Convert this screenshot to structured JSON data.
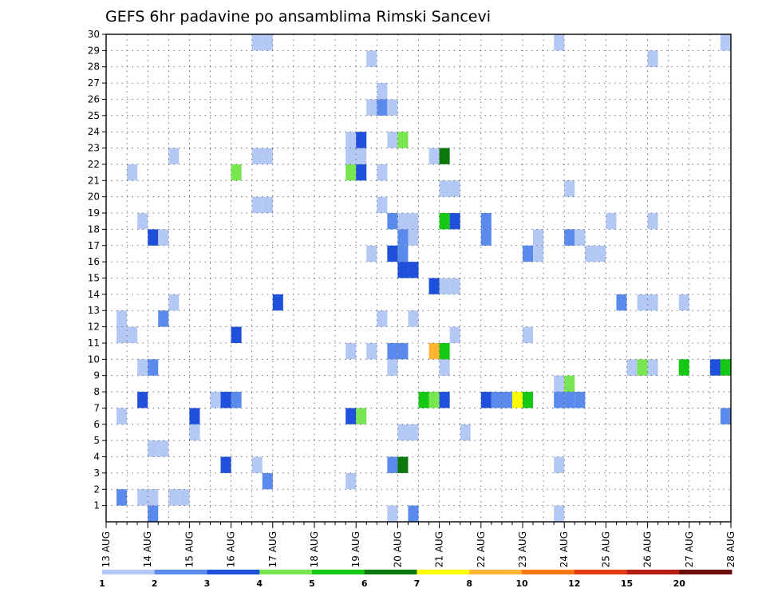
{
  "chart_data": {
    "type": "heatmap",
    "title": "GEFS 6hr padavine po ansamblima Rimski Sancevi",
    "xlabel": "",
    "ylabel": "",
    "x_tick_labels": [
      "13 AUG",
      "14 AUG",
      "15 AUG",
      "16 AUG",
      "17 AUG",
      "18 AUG",
      "19 AUG",
      "20 AUG",
      "21 AUG",
      "22 AUG",
      "23 AUG",
      "24 AUG",
      "25 AUG",
      "26 AUG",
      "27 AUG",
      "28 AUG"
    ],
    "y_tick_labels": [
      "1",
      "2",
      "3",
      "4",
      "5",
      "6",
      "7",
      "8",
      "9",
      "10",
      "11",
      "12",
      "13",
      "14",
      "15",
      "16",
      "17",
      "18",
      "19",
      "20",
      "21",
      "22",
      "23",
      "24",
      "25",
      "26",
      "27",
      "28",
      "29",
      "30"
    ],
    "time_range_days": [
      0,
      15
    ],
    "member_range": [
      0,
      30
    ],
    "time_step_days": 0.25,
    "grid": true,
    "colorbar": {
      "tick_labels": [
        "1",
        "2",
        "3",
        "4",
        "5",
        "6",
        "7",
        "8",
        "10",
        "12",
        "15",
        "20"
      ],
      "colors": [
        "#b4c8f5",
        "#5a8aec",
        "#1e50dc",
        "#78e650",
        "#14c814",
        "#0a780a",
        "#ffff00",
        "#ffb432",
        "#ff7814",
        "#e63c14",
        "#b41e14",
        "#6e0a0a"
      ],
      "placement": "bottom"
    },
    "cells_note_format": "[day_offset_from_13_AUG_00Z, member, precip_mm]",
    "cells": [
      [
        0.25,
        1,
        2.5
      ],
      [
        0.75,
        1,
        1.5
      ],
      [
        1.0,
        1,
        1.5
      ],
      [
        1.5,
        1,
        1.5
      ],
      [
        1.75,
        1,
        1.5
      ],
      [
        1.0,
        0,
        2.5
      ],
      [
        6.75,
        0,
        1.5
      ],
      [
        7.25,
        0,
        2.5
      ],
      [
        10.75,
        0,
        1.5
      ],
      [
        3.75,
        2,
        2.5
      ],
      [
        5.75,
        2,
        1.5
      ],
      [
        2.75,
        3,
        3.5
      ],
      [
        3.5,
        3,
        1.5
      ],
      [
        6.75,
        3,
        2.5
      ],
      [
        7.0,
        3,
        6.5
      ],
      [
        10.75,
        3,
        1.5
      ],
      [
        1.0,
        4,
        1.5
      ],
      [
        1.25,
        4,
        1.5
      ],
      [
        2.0,
        5,
        1.5
      ],
      [
        7.0,
        5,
        1.5
      ],
      [
        7.25,
        5,
        1.5
      ],
      [
        8.5,
        5,
        1.5
      ],
      [
        0.25,
        6,
        1.5
      ],
      [
        2.0,
        6,
        3.5
      ],
      [
        5.75,
        6,
        3.5
      ],
      [
        6.0,
        6,
        4.5
      ],
      [
        14.75,
        6,
        2.5
      ],
      [
        0.75,
        7,
        3.5
      ],
      [
        2.5,
        7,
        1.5
      ],
      [
        2.75,
        7,
        3.5
      ],
      [
        3.0,
        7,
        2.5
      ],
      [
        7.5,
        7,
        5.5
      ],
      [
        7.75,
        7,
        4.5
      ],
      [
        8.0,
        7,
        3.5
      ],
      [
        9.0,
        7,
        3.5
      ],
      [
        9.25,
        7,
        2.5
      ],
      [
        9.5,
        7,
        2.5
      ],
      [
        9.75,
        7,
        7.5
      ],
      [
        10.0,
        7,
        5.5
      ],
      [
        10.75,
        7,
        2.5
      ],
      [
        11.0,
        7,
        2.5
      ],
      [
        11.25,
        7,
        2.5
      ],
      [
        10.75,
        8,
        1.5
      ],
      [
        11.0,
        8,
        4.5
      ],
      [
        0.75,
        9,
        1.5
      ],
      [
        1.0,
        9,
        2.5
      ],
      [
        6.75,
        9,
        1.5
      ],
      [
        8.0,
        9,
        1.5
      ],
      [
        12.5,
        9,
        1.5
      ],
      [
        12.75,
        9,
        4.5
      ],
      [
        13.0,
        9,
        1.5
      ],
      [
        13.75,
        9,
        5.5
      ],
      [
        14.5,
        9,
        3.5
      ],
      [
        14.75,
        9,
        5.5
      ],
      [
        5.75,
        10,
        1.5
      ],
      [
        6.25,
        10,
        1.5
      ],
      [
        6.75,
        10,
        2.5
      ],
      [
        7.0,
        10,
        2.5
      ],
      [
        7.75,
        10,
        8.5
      ],
      [
        8.0,
        10,
        5.5
      ],
      [
        0.25,
        11,
        1.5
      ],
      [
        0.5,
        11,
        1.5
      ],
      [
        3.0,
        11,
        3.5
      ],
      [
        8.25,
        11,
        1.5
      ],
      [
        10.0,
        11,
        1.5
      ],
      [
        0.25,
        12,
        1.5
      ],
      [
        1.25,
        12,
        2.5
      ],
      [
        6.5,
        12,
        1.5
      ],
      [
        7.25,
        12,
        1.5
      ],
      [
        1.5,
        13,
        1.5
      ],
      [
        4.0,
        13,
        3.5
      ],
      [
        12.25,
        13,
        2.5
      ],
      [
        12.75,
        13,
        1.5
      ],
      [
        13.0,
        13,
        1.5
      ],
      [
        13.75,
        13,
        1.5
      ],
      [
        7.75,
        14,
        3.5
      ],
      [
        8.0,
        14,
        1.5
      ],
      [
        8.25,
        14,
        1.5
      ],
      [
        7.0,
        15,
        3.5
      ],
      [
        7.25,
        15,
        3.5
      ],
      [
        6.25,
        16,
        1.5
      ],
      [
        6.75,
        16,
        3.5
      ],
      [
        7.0,
        16,
        2.5
      ],
      [
        10.0,
        16,
        2.5
      ],
      [
        10.25,
        16,
        1.5
      ],
      [
        11.5,
        16,
        1.5
      ],
      [
        11.75,
        16,
        1.5
      ],
      [
        1.0,
        17,
        3.5
      ],
      [
        1.25,
        17,
        1.5
      ],
      [
        7.0,
        17,
        2.5
      ],
      [
        7.25,
        17,
        1.5
      ],
      [
        9.0,
        17,
        2.5
      ],
      [
        10.25,
        17,
        1.5
      ],
      [
        11.0,
        17,
        2.5
      ],
      [
        11.25,
        17,
        1.5
      ],
      [
        0.75,
        18,
        1.5
      ],
      [
        6.75,
        18,
        2.5
      ],
      [
        7.0,
        18,
        1.5
      ],
      [
        7.25,
        18,
        1.5
      ],
      [
        8.0,
        18,
        5.5
      ],
      [
        8.25,
        18,
        3.5
      ],
      [
        9.0,
        18,
        2.5
      ],
      [
        12.0,
        18,
        1.5
      ],
      [
        13.0,
        18,
        1.5
      ],
      [
        3.5,
        19,
        1.5
      ],
      [
        3.75,
        19,
        1.5
      ],
      [
        6.5,
        19,
        1.5
      ],
      [
        8.0,
        20,
        1.5
      ],
      [
        8.25,
        20,
        1.5
      ],
      [
        11.0,
        20,
        1.5
      ],
      [
        0.5,
        21,
        1.5
      ],
      [
        3.0,
        21,
        4.5
      ],
      [
        5.75,
        21,
        4.5
      ],
      [
        6.0,
        21,
        3.5
      ],
      [
        6.5,
        21,
        1.5
      ],
      [
        1.5,
        22,
        1.5
      ],
      [
        3.5,
        22,
        1.5
      ],
      [
        3.75,
        22,
        1.5
      ],
      [
        5.75,
        22,
        1.5
      ],
      [
        6.0,
        22,
        1.5
      ],
      [
        7.75,
        22,
        1.5
      ],
      [
        8.0,
        22,
        6.5
      ],
      [
        5.75,
        23,
        1.5
      ],
      [
        6.0,
        23,
        3.5
      ],
      [
        6.75,
        23,
        1.5
      ],
      [
        7.0,
        23,
        4.5
      ],
      [
        6.25,
        25,
        1.5
      ],
      [
        6.5,
        25,
        2.5
      ],
      [
        6.75,
        25,
        1.5
      ],
      [
        6.5,
        26,
        1.5
      ],
      [
        6.25,
        28,
        1.5
      ],
      [
        13.0,
        28,
        1.5
      ],
      [
        3.5,
        29,
        1.5
      ],
      [
        3.75,
        29,
        1.5
      ],
      [
        10.75,
        29,
        1.5
      ],
      [
        14.75,
        29,
        1.5
      ]
    ]
  }
}
